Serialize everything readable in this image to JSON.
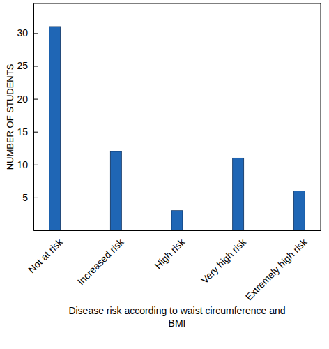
{
  "chart_data": {
    "type": "bar",
    "x_label": "Disease risk according to waist circumference and BMI",
    "y_label": "NUMBER OF STUDENTS",
    "categories": [
      "Not at risk",
      "Increased risk",
      "High risk",
      "Very high risk",
      "Extremely high risk"
    ],
    "values": [
      31,
      12,
      3,
      11,
      6
    ],
    "color": "#1f66b5",
    "ylim": [
      0,
      34.5
    ],
    "yticks": [
      5,
      10,
      15,
      20,
      25,
      30
    ],
    "grid": false
  }
}
